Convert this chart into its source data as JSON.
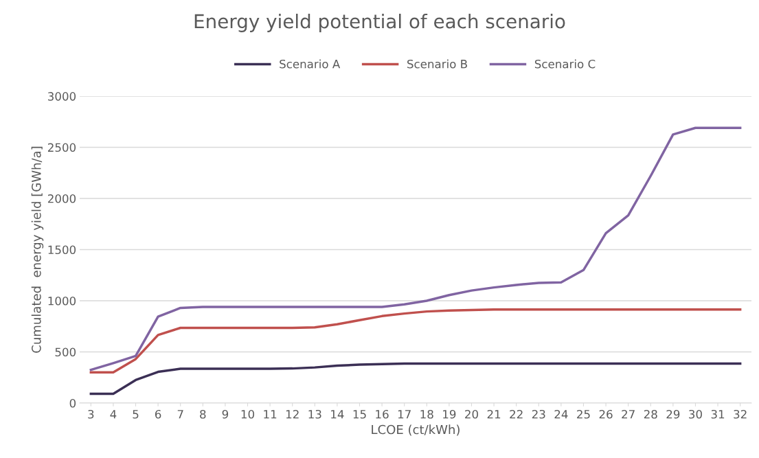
{
  "chart_data": {
    "type": "line",
    "title": "Energy yield potential of each scenario",
    "xlabel": "LCOE (ct/kWh)",
    "ylabel": "Cumulated  energy yield [GWh/a]",
    "categories": [
      "3",
      "4",
      "5",
      "6",
      "7",
      "8",
      "9",
      "10",
      "11",
      "12",
      "13",
      "14",
      "15",
      "16",
      "17",
      "18",
      "19",
      "20",
      "21",
      "22",
      "23",
      "24",
      "25",
      "26",
      "27",
      "28",
      "29",
      "30",
      "31",
      "32"
    ],
    "series": [
      {
        "name": "Scenario A",
        "color": "#3b2f55",
        "values": [
          90,
          90,
          225,
          305,
          335,
          335,
          335,
          335,
          335,
          338,
          348,
          365,
          375,
          380,
          385,
          385,
          385,
          385,
          385,
          385,
          385,
          385,
          385,
          385,
          385,
          385,
          385,
          385,
          385,
          385
        ]
      },
      {
        "name": "Scenario B",
        "color": "#c0504d",
        "values": [
          300,
          300,
          430,
          665,
          735,
          735,
          735,
          735,
          735,
          735,
          740,
          770,
          810,
          850,
          875,
          895,
          905,
          910,
          915,
          915,
          915,
          915,
          915,
          915,
          915,
          915,
          915,
          915,
          915,
          915
        ]
      },
      {
        "name": "Scenario C",
        "color": "#8064a2",
        "values": [
          325,
          390,
          460,
          845,
          930,
          940,
          940,
          940,
          940,
          940,
          940,
          940,
          940,
          940,
          965,
          1000,
          1055,
          1100,
          1130,
          1155,
          1175,
          1180,
          1300,
          1660,
          1835,
          2220,
          2625,
          2690,
          2690,
          2690
        ]
      }
    ],
    "ylim": [
      0,
      3000
    ],
    "yticks": [
      0,
      500,
      1000,
      1500,
      2000,
      2500,
      3000
    ],
    "grid": "y",
    "legend": "top",
    "marker": "none",
    "line_style": "solid"
  }
}
